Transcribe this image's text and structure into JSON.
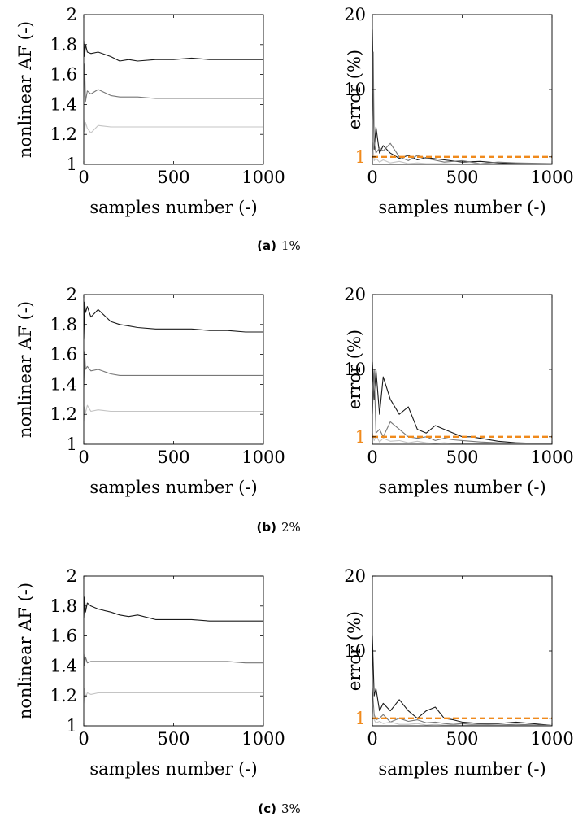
{
  "figure": {
    "panels": [
      {
        "tag": "(a)",
        "caption": "1%"
      },
      {
        "tag": "(b)",
        "caption": "2%"
      },
      {
        "tag": "(c)",
        "caption": "3%"
      }
    ],
    "colors": {
      "axis": "#000000",
      "s1": "#1a1a1a",
      "s2": "#777777",
      "s3": "#c4c4c4",
      "threshold": "#f08a1c"
    }
  },
  "chart_data": [
    {
      "type": "line",
      "panel": "(a) 1%",
      "xlabel": "samples number (-)",
      "ylabel": "nonlinear AF (-)",
      "xlim": [
        0,
        1000
      ],
      "ylim": [
        1,
        2
      ],
      "xticks": [
        0,
        500,
        1000
      ],
      "yticks": [
        1,
        1.2,
        1.4,
        1.6,
        1.8,
        2
      ],
      "series": [
        {
          "x": [
            0,
            5,
            10,
            20,
            40,
            80,
            150,
            200,
            250,
            300,
            400,
            500,
            600,
            700,
            800,
            900,
            1000
          ],
          "values": [
            1.82,
            1.72,
            1.8,
            1.75,
            1.74,
            1.75,
            1.72,
            1.69,
            1.7,
            1.69,
            1.7,
            1.7,
            1.71,
            1.7,
            1.7,
            1.7,
            1.7
          ]
        },
        {
          "x": [
            0,
            5,
            10,
            20,
            40,
            80,
            150,
            200,
            250,
            300,
            400,
            500,
            600,
            700,
            800,
            900,
            1000
          ],
          "values": [
            1.45,
            1.67,
            1.42,
            1.49,
            1.47,
            1.5,
            1.46,
            1.45,
            1.45,
            1.45,
            1.44,
            1.44,
            1.44,
            1.44,
            1.44,
            1.44,
            1.44
          ]
        },
        {
          "x": [
            0,
            5,
            10,
            20,
            40,
            80,
            150,
            200,
            250,
            300,
            400,
            500,
            600,
            700,
            800,
            900,
            1000
          ],
          "values": [
            1.3,
            1.22,
            1.28,
            1.24,
            1.21,
            1.26,
            1.25,
            1.25,
            1.25,
            1.25,
            1.25,
            1.25,
            1.25,
            1.25,
            1.25,
            1.25,
            1.25
          ]
        }
      ]
    },
    {
      "type": "line",
      "panel": "(a) 1%",
      "xlabel": "samples number (-)",
      "ylabel": "error (%)",
      "xlim": [
        0,
        1000
      ],
      "ylim": [
        0,
        20
      ],
      "xticks": [
        0,
        500,
        1000
      ],
      "yticks": [
        1,
        10,
        20
      ],
      "threshold": 1,
      "series": [
        {
          "x": [
            0,
            5,
            10,
            20,
            40,
            60,
            100,
            150,
            200,
            250,
            300,
            400,
            500,
            600,
            700,
            800,
            1000
          ],
          "values": [
            18,
            9,
            2,
            5,
            1.5,
            2.5,
            1.5,
            0.8,
            1.2,
            0.6,
            0.9,
            0.6,
            0.3,
            0.4,
            0.2,
            0.1,
            0.05
          ]
        },
        {
          "x": [
            0,
            5,
            10,
            20,
            40,
            60,
            100,
            150,
            200,
            250,
            300,
            400,
            500,
            600,
            700,
            800,
            1000
          ],
          "values": [
            6,
            15,
            3,
            1.5,
            2.2,
            1.8,
            2.8,
            1,
            0.5,
            1.2,
            0.8,
            0.3,
            0.5,
            0.1,
            0.3,
            0.2,
            0.1
          ]
        },
        {
          "x": [
            0,
            5,
            10,
            20,
            40,
            60,
            100,
            150,
            200,
            250,
            300,
            400,
            500,
            600,
            700,
            800,
            1000
          ],
          "values": [
            3,
            2,
            0.5,
            0.8,
            0.3,
            0.6,
            0.2,
            0.4,
            0.1,
            0.2,
            0.1,
            0.1,
            0.05,
            0.1,
            0.05,
            0.05,
            0.05
          ]
        }
      ]
    },
    {
      "type": "line",
      "panel": "(b) 2%",
      "xlabel": "samples number (-)",
      "ylabel": "nonlinear AF (-)",
      "xlim": [
        0,
        1000
      ],
      "ylim": [
        1,
        2
      ],
      "xticks": [
        0,
        500,
        1000
      ],
      "yticks": [
        1,
        1.2,
        1.4,
        1.6,
        1.8,
        2
      ],
      "series": [
        {
          "x": [
            0,
            5,
            10,
            20,
            40,
            80,
            150,
            200,
            250,
            300,
            400,
            500,
            600,
            700,
            800,
            900,
            1000
          ],
          "values": [
            1.7,
            1.95,
            1.88,
            1.92,
            1.85,
            1.9,
            1.82,
            1.8,
            1.79,
            1.78,
            1.77,
            1.77,
            1.77,
            1.76,
            1.76,
            1.75,
            1.75
          ]
        },
        {
          "x": [
            0,
            5,
            10,
            20,
            40,
            80,
            150,
            200,
            250,
            300,
            400,
            500,
            600,
            700,
            800,
            900,
            1000
          ],
          "values": [
            1.38,
            1.62,
            1.5,
            1.52,
            1.49,
            1.5,
            1.47,
            1.46,
            1.46,
            1.46,
            1.46,
            1.46,
            1.46,
            1.46,
            1.46,
            1.46,
            1.46
          ]
        },
        {
          "x": [
            0,
            5,
            10,
            20,
            40,
            80,
            150,
            200,
            250,
            300,
            400,
            500,
            600,
            700,
            800,
            900,
            1000
          ],
          "values": [
            1.15,
            1.25,
            1.21,
            1.26,
            1.22,
            1.23,
            1.22,
            1.22,
            1.22,
            1.22,
            1.22,
            1.22,
            1.22,
            1.22,
            1.22,
            1.22,
            1.22
          ]
        }
      ]
    },
    {
      "type": "line",
      "panel": "(b) 2%",
      "xlabel": "samples number (-)",
      "ylabel": "error (%)",
      "xlim": [
        0,
        1000
      ],
      "ylim": [
        0,
        20
      ],
      "xticks": [
        0,
        500,
        1000
      ],
      "yticks": [
        1,
        10,
        20
      ],
      "threshold": 1,
      "series": [
        {
          "x": [
            0,
            10,
            20,
            40,
            60,
            100,
            150,
            200,
            250,
            300,
            350,
            400,
            450,
            500,
            550,
            600,
            700,
            800,
            1000
          ],
          "values": [
            11,
            6,
            10,
            4,
            9,
            6,
            4,
            5,
            2,
            1.5,
            2.5,
            2,
            1.5,
            1,
            1,
            0.8,
            0.4,
            0.2,
            0.05
          ]
        },
        {
          "x": [
            0,
            10,
            20,
            40,
            60,
            100,
            150,
            200,
            250,
            300,
            350,
            400,
            450,
            500,
            550,
            600,
            700,
            800,
            1000
          ],
          "values": [
            4,
            10,
            1.5,
            2,
            1,
            3,
            2,
            1,
            0.8,
            1,
            0.5,
            0.8,
            0.6,
            0.5,
            0.4,
            0.3,
            0.2,
            0.1,
            0.05
          ]
        },
        {
          "x": [
            0,
            10,
            20,
            40,
            60,
            100,
            150,
            200,
            250,
            300,
            350,
            400,
            450,
            500,
            550,
            600,
            700,
            800,
            1000
          ],
          "values": [
            1.5,
            0.5,
            1.2,
            0.3,
            0.8,
            0.4,
            0.5,
            0.2,
            0.4,
            0.2,
            0.1,
            0.2,
            0.1,
            0.1,
            0.1,
            0.05,
            0.05,
            0.05,
            0.05
          ]
        }
      ]
    },
    {
      "type": "line",
      "panel": "(c) 3%",
      "xlabel": "samples number (-)",
      "ylabel": "nonlinear AF (-)",
      "xlim": [
        0,
        1000
      ],
      "ylim": [
        1,
        2
      ],
      "xticks": [
        0,
        500,
        1000
      ],
      "yticks": [
        1,
        1.2,
        1.4,
        1.6,
        1.8,
        2
      ],
      "series": [
        {
          "x": [
            0,
            5,
            10,
            20,
            40,
            80,
            150,
            200,
            250,
            300,
            400,
            500,
            600,
            700,
            800,
            900,
            1000
          ],
          "values": [
            1.72,
            1.86,
            1.76,
            1.82,
            1.8,
            1.78,
            1.76,
            1.74,
            1.73,
            1.74,
            1.71,
            1.71,
            1.71,
            1.7,
            1.7,
            1.7,
            1.7
          ]
        },
        {
          "x": [
            0,
            5,
            10,
            20,
            40,
            80,
            150,
            200,
            250,
            300,
            400,
            500,
            600,
            700,
            800,
            900,
            1000
          ],
          "values": [
            1.48,
            1.4,
            1.46,
            1.42,
            1.43,
            1.43,
            1.43,
            1.43,
            1.43,
            1.43,
            1.43,
            1.43,
            1.43,
            1.43,
            1.43,
            1.42,
            1.42
          ]
        },
        {
          "x": [
            0,
            5,
            10,
            20,
            40,
            80,
            150,
            200,
            250,
            300,
            400,
            500,
            600,
            700,
            800,
            900,
            1000
          ],
          "values": [
            1.15,
            1.25,
            1.19,
            1.22,
            1.21,
            1.22,
            1.22,
            1.22,
            1.22,
            1.22,
            1.22,
            1.22,
            1.22,
            1.22,
            1.22,
            1.22,
            1.22
          ]
        }
      ]
    },
    {
      "type": "line",
      "panel": "(c) 3%",
      "xlabel": "samples number (-)",
      "ylabel": "error (%)",
      "xlim": [
        0,
        1000
      ],
      "ylim": [
        0,
        20
      ],
      "xticks": [
        0,
        500,
        1000
      ],
      "yticks": [
        1,
        10,
        20
      ],
      "threshold": 1,
      "series": [
        {
          "x": [
            0,
            10,
            20,
            40,
            60,
            100,
            150,
            200,
            250,
            300,
            350,
            400,
            450,
            500,
            550,
            600,
            700,
            800,
            1000
          ],
          "values": [
            12,
            4,
            5,
            2,
            3,
            2,
            3.5,
            2,
            1,
            2,
            2.5,
            1,
            0.8,
            0.5,
            0.4,
            0.3,
            0.3,
            0.5,
            0.05
          ]
        },
        {
          "x": [
            0,
            10,
            20,
            40,
            60,
            100,
            150,
            200,
            250,
            300,
            350,
            400,
            450,
            500,
            550,
            600,
            700,
            800,
            1000
          ],
          "values": [
            5,
            1.5,
            0.8,
            1,
            1.5,
            0.5,
            1,
            0.6,
            0.8,
            0.4,
            0.5,
            0.3,
            0.2,
            0.3,
            0.2,
            0.2,
            0.1,
            0.2,
            0.05
          ]
        },
        {
          "x": [
            0,
            10,
            20,
            40,
            60,
            100,
            150,
            200,
            250,
            300,
            350,
            400,
            450,
            500,
            550,
            600,
            700,
            800,
            1000
          ],
          "values": [
            3,
            0.8,
            0.4,
            0.6,
            0.3,
            0.5,
            0.2,
            0.2,
            0.3,
            0.1,
            0.2,
            0.1,
            0.1,
            0.1,
            0.05,
            0.1,
            0.05,
            0.05,
            0.05
          ]
        }
      ]
    }
  ]
}
